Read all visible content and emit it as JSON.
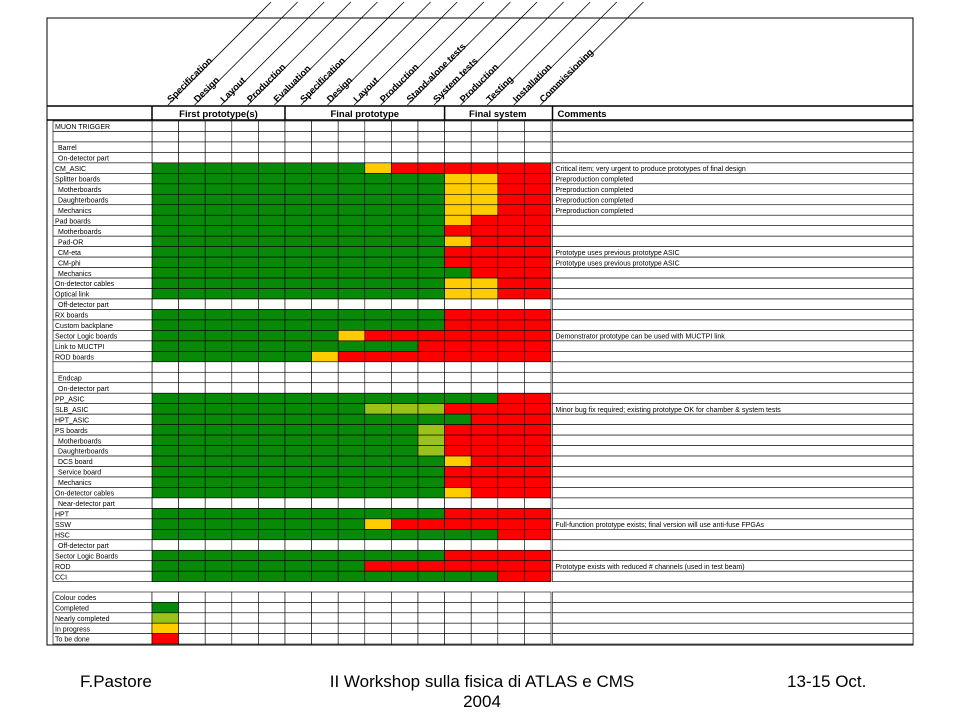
{
  "colors": {
    "G": "#088a08",
    "N": "#99c21c",
    "Y": "#ffcc00",
    "R": "#ff0000",
    "W": "#ffffff",
    "line": "#000000"
  },
  "phases": [
    {
      "label": "First prototype(s)",
      "span": 5
    },
    {
      "label": "Final prototype",
      "span": 6
    },
    {
      "label": "Final system",
      "span": 4
    }
  ],
  "comments_header": "Comments",
  "step_labels": [
    "Specification",
    "Design",
    "Layout",
    "Production",
    "Evaluation",
    "Specification",
    "Design",
    "Layout",
    "Production",
    "Stand-alone tests",
    "System tests",
    "Production",
    "Testing",
    "Installation",
    "Commissioning"
  ],
  "rows": [
    {
      "label": "MUON TRIGGER",
      "cells": "",
      "comment": ""
    },
    {
      "label": "",
      "cells": "",
      "comment": ""
    },
    {
      "label": "Barrel",
      "cells": "",
      "comment": "",
      "indent": true
    },
    {
      "label": "On-detector part",
      "cells": "",
      "comment": "",
      "indent": true
    },
    {
      "label": "CM_ASIC",
      "cells": "GGGGGGGGYRRRRRR",
      "comment": "Critical item; very urgent to produce prototypes of final design"
    },
    {
      "label": "Splitter boards",
      "cells": "GGGGGGGGGGGYYRR",
      "comment": "Preproduction completed"
    },
    {
      "label": "Motherboards",
      "cells": "GGGGGGGGGGGYYRR",
      "comment": "Preproduction completed",
      "indent": true
    },
    {
      "label": "Daughterboards",
      "cells": "GGGGGGGGGGGYYRR",
      "comment": "Preproduction completed",
      "indent": true
    },
    {
      "label": "Mechanics",
      "cells": "GGGGGGGGGGGYYRR",
      "comment": "Preproduction completed",
      "indent": true
    },
    {
      "label": "Pad boards",
      "cells": "GGGGGGGGGGGYRRR",
      "comment": ""
    },
    {
      "label": "Motherboards",
      "cells": "GGGGGGGGGGGRRRR",
      "comment": "",
      "indent": true
    },
    {
      "label": "Pad-OR",
      "cells": "GGGGGGGGGGGYRRR",
      "comment": "",
      "indent": true
    },
    {
      "label": "CM-eta",
      "cells": "GGGGGGGGGGGRRRR",
      "comment": "Prototype uses previous prototype ASIC",
      "indent": true
    },
    {
      "label": "CM-phi",
      "cells": "GGGGGGGGGGGRRRR",
      "comment": "Prototype uses previous prototype ASIC",
      "indent": true
    },
    {
      "label": "Mechanics",
      "cells": "GGGGGGGGGGGGRRR",
      "comment": "",
      "indent": true
    },
    {
      "label": "On-detector cables",
      "cells": "GGGGGGGGGGGYYRR",
      "comment": ""
    },
    {
      "label": "Optical link",
      "cells": "GGGGGGGGGGGYYRR",
      "comment": ""
    },
    {
      "label": "Off-detector part",
      "cells": "",
      "comment": "",
      "indent": true
    },
    {
      "label": "RX boards",
      "cells": "GGGGGGGGGGGRRRR",
      "comment": ""
    },
    {
      "label": "Custom backplane",
      "cells": "GGGGGGGGGGGRRRR",
      "comment": ""
    },
    {
      "label": "Sector Logic boards",
      "cells": "GGGGGGGYRRRRRRR",
      "comment": "Demonstrator prototype can be used with MUCTPI link"
    },
    {
      "label": "Link to MUCTPI",
      "cells": "GGGGGGGGGGRRRRR",
      "comment": ""
    },
    {
      "label": "ROD boards",
      "cells": "GGGGGGYRRRRRRRR",
      "comment": ""
    },
    {
      "label": "",
      "cells": "",
      "comment": ""
    },
    {
      "label": "Endcap",
      "cells": "",
      "comment": "",
      "indent": true
    },
    {
      "label": "On-detector part",
      "cells": "",
      "comment": "",
      "indent": true
    },
    {
      "label": "PP_ASIC",
      "cells": "GGGGGGGGGGGGGRR",
      "comment": ""
    },
    {
      "label": "SLB_ASIC",
      "cells": "GGGGGGGGNNNRRRR",
      "comment": "Minor bug fix required; existing prototype OK for chamber & system tests"
    },
    {
      "label": "HPT_ASIC",
      "cells": "GGGGGGGGGGGGRRR",
      "comment": ""
    },
    {
      "label": "PS boards",
      "cells": "GGGGGGGGGGNRRRR",
      "comment": ""
    },
    {
      "label": "Motherboards",
      "cells": "GGGGGGGGGGNRRRR",
      "comment": "",
      "indent": true
    },
    {
      "label": "Daughterboards",
      "cells": "GGGGGGGGGGNRRRR",
      "comment": "",
      "indent": true
    },
    {
      "label": "DCS board",
      "cells": "GGGGGGGGGGGYRRR",
      "comment": "",
      "indent": true
    },
    {
      "label": "Service board",
      "cells": "GGGGGGGGGGGRRRR",
      "comment": "",
      "indent": true
    },
    {
      "label": "Mechanics",
      "cells": "GGGGGGGGGGGRRRR",
      "comment": "",
      "indent": true
    },
    {
      "label": "On-detector cables",
      "cells": "GGGGGGGGGGGYRRR",
      "comment": ""
    },
    {
      "label": "Near-detector part",
      "cells": "",
      "comment": "",
      "indent": true
    },
    {
      "label": "HPT",
      "cells": "GGGGGGGGGGGRRRR",
      "comment": ""
    },
    {
      "label": "SSW",
      "cells": "GGGGGGGGYRRRRRR",
      "comment": "Full-function prototype exists; final version will use anti-fuse FPGAs"
    },
    {
      "label": "HSC",
      "cells": "GGGGGGGGGGGGGRR",
      "comment": ""
    },
    {
      "label": "Off-detector part",
      "cells": "",
      "comment": "",
      "indent": true
    },
    {
      "label": "Sector Logic Boards",
      "cells": "GGGGGGGGGGGRRRR",
      "comment": ""
    },
    {
      "label": "ROD",
      "cells": "GGGGGGGGRRRRRRR",
      "comment": "Prototype exists with reduced # channels (used in test beam)"
    },
    {
      "label": "CCI",
      "cells": "GGGGGGGGGGGGGRR",
      "comment": ""
    }
  ],
  "legend": {
    "title": "Colour codes",
    "items": [
      {
        "label": "Completed",
        "color": "G"
      },
      {
        "label": "Nearly completed",
        "color": "N"
      },
      {
        "label": "In progress",
        "color": "Y"
      },
      {
        "label": "To be done",
        "color": "R"
      }
    ]
  },
  "footer": {
    "left": "F.Pastore",
    "center_line1": "II Workshop sulla fisica di ATLAS e CMS",
    "center_line2": "2004",
    "right": "13-15 Oct."
  }
}
